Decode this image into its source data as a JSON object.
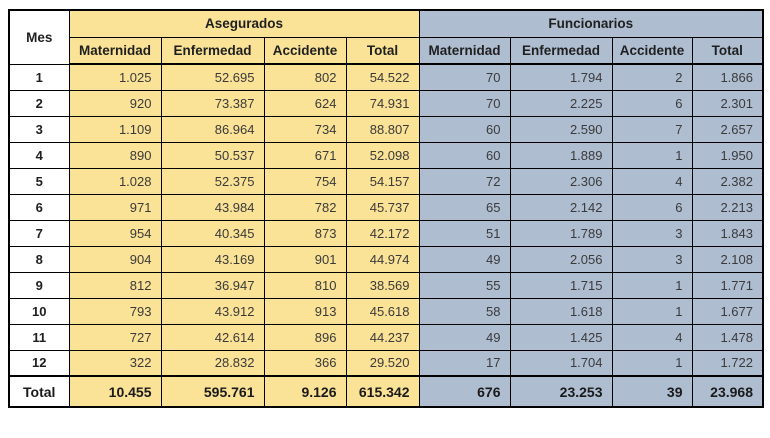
{
  "colors": {
    "asegurados_bg": "#fae296",
    "funcionarios_bg": "#afbdd1",
    "border": "#000000",
    "row_header_bg": "#ffffff"
  },
  "chart_data": {
    "type": "table",
    "row_header": "Mes",
    "number_format": "thousands-dot",
    "col_groups": [
      {
        "label": "Asegurados",
        "columns": [
          "Maternidad",
          "Enfermedad",
          "Accidente",
          "Total"
        ]
      },
      {
        "label": "Funcionarios",
        "columns": [
          "Maternidad",
          "Enfermedad",
          "Accidente",
          "Total"
        ]
      }
    ],
    "rows": [
      {
        "mes": "1",
        "asegurados": [
          1025,
          52695,
          802,
          54522
        ],
        "funcionarios": [
          70,
          1794,
          2,
          1866
        ]
      },
      {
        "mes": "2",
        "asegurados": [
          920,
          73387,
          624,
          74931
        ],
        "funcionarios": [
          70,
          2225,
          6,
          2301
        ]
      },
      {
        "mes": "3",
        "asegurados": [
          1109,
          86964,
          734,
          88807
        ],
        "funcionarios": [
          60,
          2590,
          7,
          2657
        ]
      },
      {
        "mes": "4",
        "asegurados": [
          890,
          50537,
          671,
          52098
        ],
        "funcionarios": [
          60,
          1889,
          1,
          1950
        ]
      },
      {
        "mes": "5",
        "asegurados": [
          1028,
          52375,
          754,
          54157
        ],
        "funcionarios": [
          72,
          2306,
          4,
          2382
        ]
      },
      {
        "mes": "6",
        "asegurados": [
          971,
          43984,
          782,
          45737
        ],
        "funcionarios": [
          65,
          2142,
          6,
          2213
        ]
      },
      {
        "mes": "7",
        "asegurados": [
          954,
          40345,
          873,
          42172
        ],
        "funcionarios": [
          51,
          1789,
          3,
          1843
        ]
      },
      {
        "mes": "8",
        "asegurados": [
          904,
          43169,
          901,
          44974
        ],
        "funcionarios": [
          49,
          2056,
          3,
          2108
        ]
      },
      {
        "mes": "9",
        "asegurados": [
          812,
          36947,
          810,
          38569
        ],
        "funcionarios": [
          55,
          1715,
          1,
          1771
        ]
      },
      {
        "mes": "10",
        "asegurados": [
          793,
          43912,
          913,
          45618
        ],
        "funcionarios": [
          58,
          1618,
          1,
          1677
        ]
      },
      {
        "mes": "11",
        "asegurados": [
          727,
          42614,
          896,
          44237
        ],
        "funcionarios": [
          49,
          1425,
          4,
          1478
        ]
      },
      {
        "mes": "12",
        "asegurados": [
          322,
          28832,
          366,
          29520
        ],
        "funcionarios": [
          17,
          1704,
          1,
          1722
        ]
      }
    ],
    "total": {
      "label": "Total",
      "asegurados": [
        10455,
        595761,
        9126,
        615342
      ],
      "funcionarios": [
        676,
        23253,
        39,
        23968
      ]
    }
  }
}
